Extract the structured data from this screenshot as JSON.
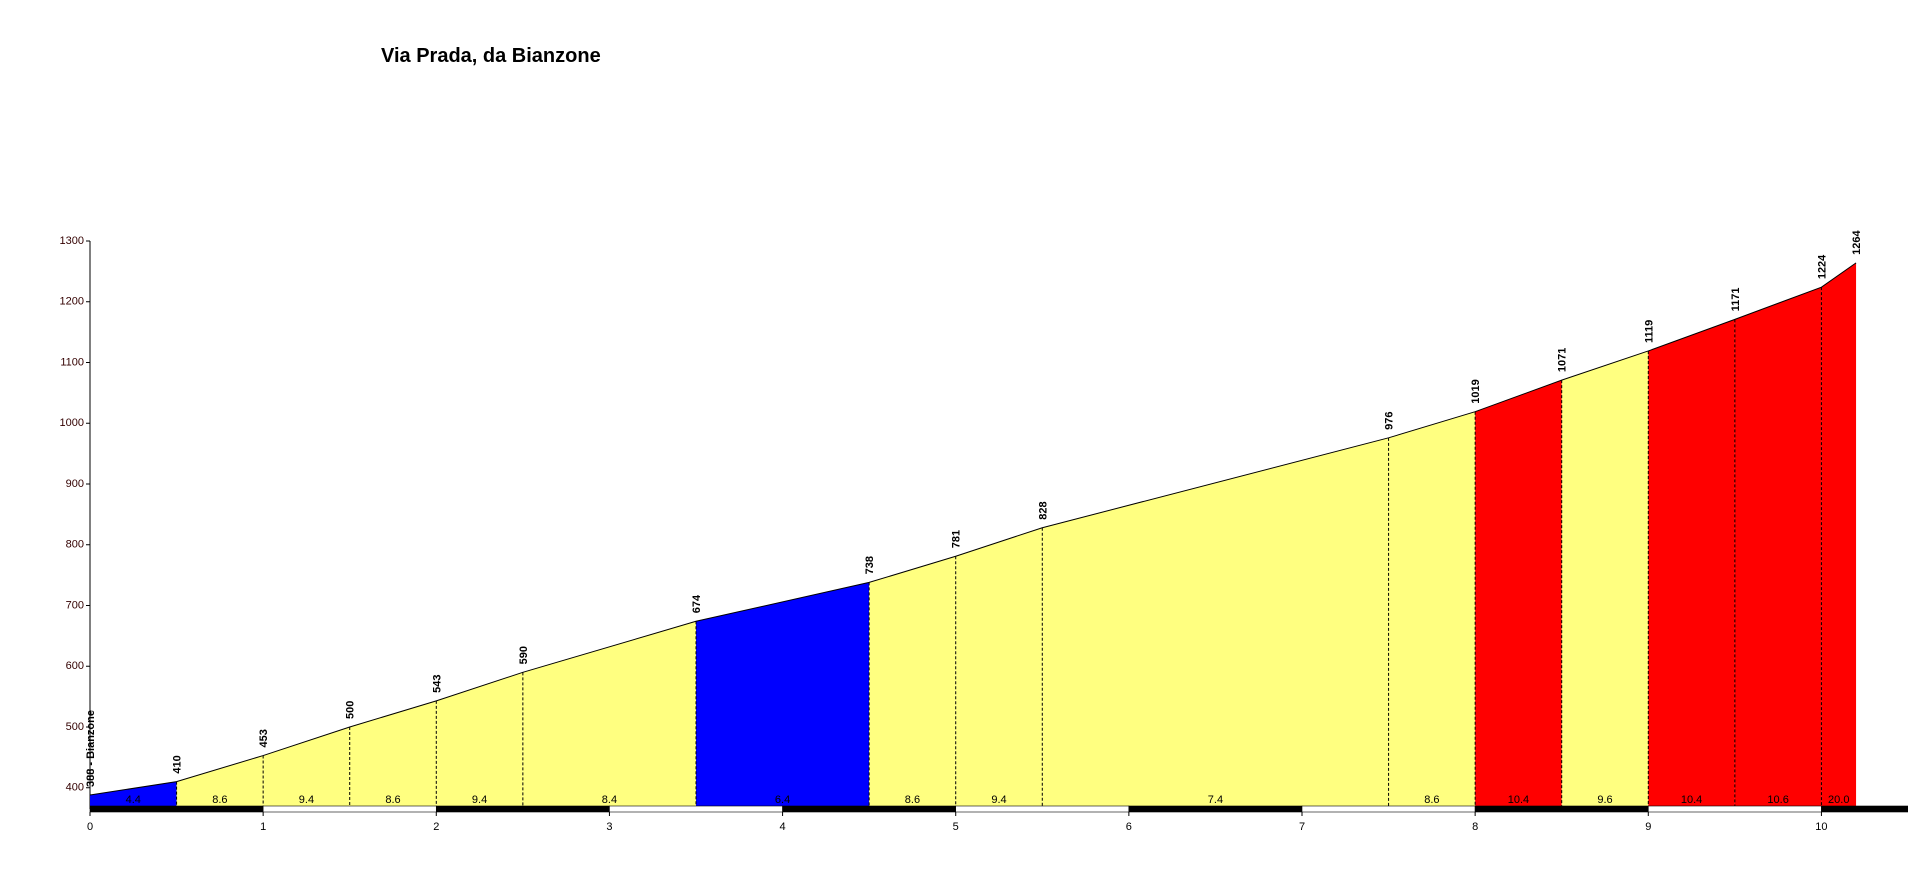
{
  "chart_data": {
    "type": "elevation-profile",
    "title": "Via Prada, da Bianzone",
    "x": [
      0,
      0.5,
      1,
      1.5,
      2,
      2.5,
      3.5,
      4.5,
      5,
      5.5,
      7.5,
      8,
      8.5,
      9,
      9.5,
      10,
      10.2
    ],
    "values": [
      388,
      410,
      453,
      500,
      543,
      590,
      674,
      738,
      781,
      828,
      976,
      1019,
      1071,
      1119,
      1171,
      1224,
      1264
    ],
    "value_labels": [
      "388 - Bianzone",
      "410",
      "453",
      "500",
      "543",
      "590",
      "674",
      "738",
      "781",
      "828",
      "976",
      "1019",
      "1071",
      "1119",
      "1171",
      "1224",
      "1264"
    ],
    "segment_labels": [
      "4.4",
      "8.6",
      "9.4",
      "8.6",
      "9.4",
      "8.4",
      "6.4",
      "8.6",
      "9.4",
      "7.4",
      "8.6",
      "10.4",
      "9.6",
      "10.4",
      "10.6",
      "20.0"
    ],
    "segment_colors": [
      "#0000ff",
      "#ffff80",
      "#ffff80",
      "#ffff80",
      "#ffff80",
      "#ffff80",
      "#0000ff",
      "#ffff80",
      "#ffff80",
      "#ffff80",
      "#ffff80",
      "#ff0000",
      "#ffff80",
      "#ff0000",
      "#ff0000",
      "#ff0000"
    ],
    "xlim": [
      0,
      10.5
    ],
    "xticks": [
      0,
      1,
      2,
      3,
      4,
      5,
      6,
      7,
      8,
      9,
      10
    ],
    "ylim": [
      365,
      1300
    ],
    "yticks": [
      400,
      500,
      600,
      700,
      800,
      900,
      1000,
      1100,
      1200,
      1300
    ]
  }
}
